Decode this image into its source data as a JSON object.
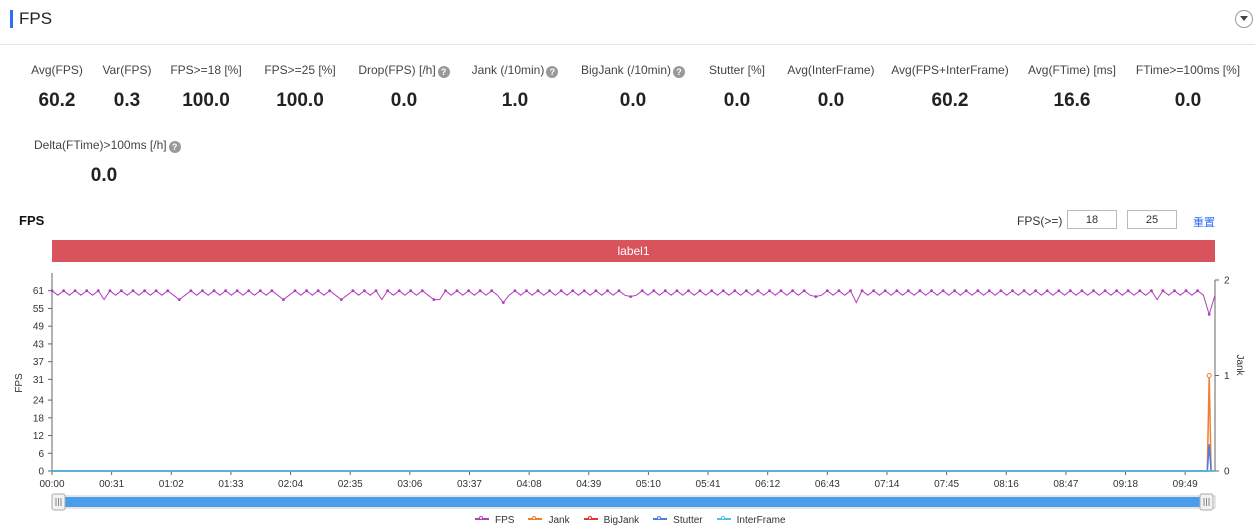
{
  "header": {
    "title": "FPS"
  },
  "metrics": [
    {
      "label": "Avg(FPS)",
      "value": "60.2",
      "help": false
    },
    {
      "label": "Var(FPS)",
      "value": "0.3",
      "help": false
    },
    {
      "label": "FPS>=18 [%]",
      "value": "100.0",
      "help": false
    },
    {
      "label": "FPS>=25 [%]",
      "value": "100.0",
      "help": false
    },
    {
      "label": "Drop(FPS) [/h]",
      "value": "0.0",
      "help": true
    },
    {
      "label": "Jank (/10min)",
      "value": "1.0",
      "help": true
    },
    {
      "label": "BigJank (/10min)",
      "value": "0.0",
      "help": true
    },
    {
      "label": "Stutter [%]",
      "value": "0.0",
      "help": false
    },
    {
      "label": "Avg(InterFrame)",
      "value": "0.0",
      "help": false
    },
    {
      "label": "Avg(FPS+InterFrame)",
      "value": "60.2",
      "help": false
    },
    {
      "label": "Avg(FTime) [ms]",
      "value": "16.6",
      "help": false
    },
    {
      "label": "FTime>=100ms [%]",
      "value": "0.0",
      "help": false
    },
    {
      "label": "Delta(FTime)>100ms [/h]",
      "value": "0.0",
      "help": true
    }
  ],
  "chart_section": {
    "title": "FPS",
    "threshold_label": "FPS(>=)",
    "threshold_low": "18",
    "threshold_high": "25",
    "reset_label": "重置",
    "label_band": "label1"
  },
  "chart_data": {
    "type": "line",
    "x_ticks": [
      "00:00",
      "00:31",
      "01:02",
      "01:33",
      "02:04",
      "02:35",
      "03:06",
      "03:37",
      "04:08",
      "04:39",
      "05:10",
      "05:41",
      "06:12",
      "06:43",
      "07:14",
      "07:45",
      "08:16",
      "08:47",
      "09:18",
      "09:49"
    ],
    "y_left_ticks": [
      0,
      6,
      12,
      18,
      24,
      31,
      37,
      43,
      49,
      55,
      61
    ],
    "y_left_label": "FPS",
    "y_left_range": [
      0,
      67
    ],
    "y_right_ticks": [
      0,
      1,
      2
    ],
    "y_right_label": "Jank",
    "y_right_range": [
      0,
      2
    ],
    "x_range_seconds": [
      0,
      603
    ],
    "series": [
      {
        "name": "FPS",
        "color": "#b13fb8",
        "axis": "left",
        "baseline": 60,
        "pattern": "oscillates 59-61",
        "dips": [
          {
            "t": 26,
            "v": 58
          },
          {
            "t": 67,
            "v": 58
          },
          {
            "t": 121,
            "v": 58
          },
          {
            "t": 150,
            "v": 58
          },
          {
            "t": 171,
            "v": 58
          },
          {
            "t": 197,
            "v": 58
          },
          {
            "t": 202,
            "v": 58
          },
          {
            "t": 235,
            "v": 57
          },
          {
            "t": 300,
            "v": 59
          },
          {
            "t": 397,
            "v": 59
          },
          {
            "t": 418,
            "v": 57
          },
          {
            "t": 573,
            "v": 58
          },
          {
            "t": 600,
            "v": 53
          }
        ]
      },
      {
        "name": "Jank",
        "color": "#ef7f33",
        "axis": "right",
        "points": [
          {
            "t": 0,
            "v": 0
          },
          {
            "t": 599,
            "v": 0
          },
          {
            "t": 600,
            "v": 1
          },
          {
            "t": 601,
            "v": 0
          }
        ]
      },
      {
        "name": "BigJank",
        "color": "#e0362f",
        "axis": "right",
        "points": [
          {
            "t": 0,
            "v": 0
          },
          {
            "t": 603,
            "v": 0
          }
        ]
      },
      {
        "name": "Stutter",
        "color": "#4b7be8",
        "axis": "right",
        "points": [
          {
            "t": 0,
            "v": 0
          },
          {
            "t": 599,
            "v": 0
          },
          {
            "t": 600,
            "v": 0.28
          },
          {
            "t": 601,
            "v": 0
          }
        ]
      },
      {
        "name": "InterFrame",
        "color": "#49c2e8",
        "axis": "right",
        "points": [
          {
            "t": 0,
            "v": 0
          },
          {
            "t": 603,
            "v": 0
          }
        ]
      }
    ],
    "legend_position": "bottom-center",
    "grid": false
  }
}
